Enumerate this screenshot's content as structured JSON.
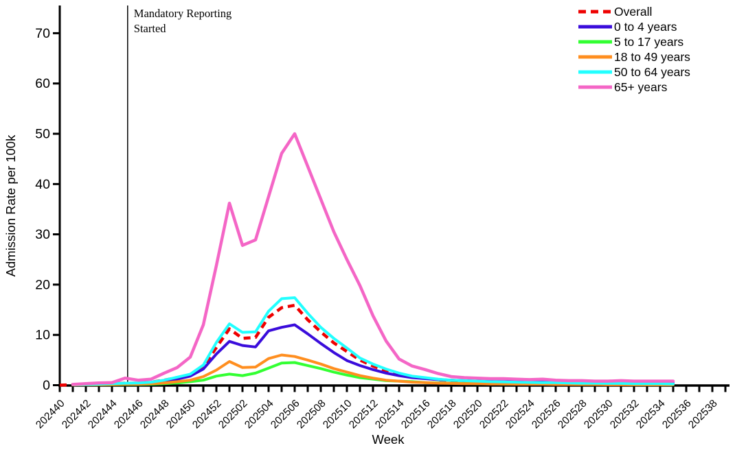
{
  "figure": {
    "background": "#FFFFFF",
    "axis_color": "#000000"
  },
  "chart_data": {
    "type": "line",
    "title": "",
    "xlabel": "Week",
    "ylabel": "Admission Rate per 100k",
    "ylim": [
      0,
      75
    ],
    "yticks": [
      0,
      10,
      20,
      30,
      40,
      50,
      60,
      70
    ],
    "grid": false,
    "legend_position": "top-right",
    "x_tick_step_weeks": 2,
    "axis_tick_count": 52,
    "x": [
      "202440",
      "202441",
      "202442",
      "202443",
      "202444",
      "202445",
      "202446",
      "202447",
      "202448",
      "202449",
      "202450",
      "202451",
      "202452",
      "202501",
      "202502",
      "202503",
      "202504",
      "202505",
      "202506",
      "202507",
      "202508",
      "202509",
      "202510",
      "202511",
      "202512",
      "202513",
      "202514",
      "202515",
      "202516",
      "202517",
      "202518",
      "202519",
      "202520",
      "202521",
      "202522",
      "202523",
      "202524",
      "202525",
      "202526",
      "202527",
      "202528",
      "202529",
      "202530",
      "202531",
      "202532",
      "202533",
      "202534",
      "202535"
    ],
    "x_tick_labels": [
      "202440",
      "202442",
      "202444",
      "202446",
      "202448",
      "202450",
      "202452",
      "202502",
      "202504",
      "202506",
      "202508",
      "202510",
      "202512",
      "202514",
      "202516",
      "202518",
      "202520",
      "202522",
      "202524",
      "202526",
      "202528",
      "202530",
      "202532",
      "202534",
      "202536",
      "202538"
    ],
    "vline": {
      "week": "202445",
      "label_line1": "Mandatory Reporting",
      "label_line2": "Started"
    },
    "series": [
      {
        "name": "Overall",
        "color": "#EE0000",
        "dashed": true,
        "values": [
          0,
          0.1,
          0.15,
          0.2,
          0.3,
          0.4,
          0.4,
          0.6,
          1.0,
          1.5,
          2.0,
          3.6,
          7.5,
          11.2,
          9.3,
          9.5,
          13.5,
          15.4,
          15.9,
          13.0,
          10.6,
          8.4,
          6.7,
          5.0,
          3.8,
          2.8,
          2.1,
          1.7,
          1.4,
          1.1,
          0.95,
          0.85,
          0.75,
          0.7,
          0.65,
          0.6,
          0.55,
          0.5,
          0.5,
          0.45,
          0.45,
          0.4,
          0.4,
          0.4,
          0.35,
          0.35,
          0.35,
          0.3
        ]
      },
      {
        "name": "0 to 4 years",
        "color": "#3A0CDB",
        "dashed": false,
        "values": [
          null,
          0.1,
          0.1,
          0.15,
          0.2,
          0.3,
          0.3,
          0.5,
          0.8,
          1.2,
          1.8,
          3.2,
          6.2,
          8.7,
          7.9,
          7.6,
          10.8,
          11.5,
          12.0,
          10.2,
          8.3,
          6.5,
          4.9,
          3.9,
          3.1,
          2.4,
          1.9,
          1.5,
          1.3,
          1.1,
          1.0,
          0.9,
          0.8,
          0.75,
          0.7,
          0.65,
          0.6,
          0.6,
          0.55,
          0.5,
          0.5,
          0.5,
          0.45,
          0.45,
          0.4,
          0.4,
          0.4,
          0.4
        ]
      },
      {
        "name": "5 to 17 years",
        "color": "#33FF33",
        "dashed": false,
        "values": [
          null,
          0.05,
          0.1,
          0.1,
          0.1,
          0.15,
          0.15,
          0.2,
          0.3,
          0.45,
          0.7,
          1.0,
          1.8,
          2.2,
          1.9,
          2.4,
          3.4,
          4.4,
          4.5,
          3.9,
          3.3,
          2.6,
          2.0,
          1.5,
          1.2,
          0.9,
          0.8,
          0.7,
          0.5,
          0.45,
          0.4,
          0.35,
          0.3,
          0.3,
          0.25,
          0.25,
          0.2,
          0.2,
          0.2,
          0.2,
          0.15,
          0.15,
          0.15,
          0.15,
          0.1,
          0.1,
          0.1,
          0.1
        ]
      },
      {
        "name": "18 to 49 years",
        "color": "#FF8E1F",
        "dashed": false,
        "values": [
          null,
          0.05,
          0.1,
          0.1,
          0.15,
          0.2,
          0.2,
          0.3,
          0.45,
          0.7,
          1.0,
          1.7,
          3.0,
          4.7,
          3.5,
          3.6,
          5.3,
          6.0,
          5.7,
          5.0,
          4.2,
          3.3,
          2.6,
          1.9,
          1.4,
          1.0,
          0.8,
          0.6,
          0.5,
          0.4,
          0.35,
          0.3,
          0.3,
          0.25,
          0.25,
          0.2,
          0.2,
          0.2,
          0.15,
          0.15,
          0.15,
          0.15,
          0.1,
          0.1,
          0.1,
          0.1,
          0.1,
          0.1
        ]
      },
      {
        "name": "50 to 64 years",
        "color": "#22FFFF",
        "dashed": false,
        "values": [
          null,
          0.1,
          0.15,
          0.2,
          0.3,
          0.4,
          0.45,
          0.6,
          1.0,
          1.6,
          2.2,
          4.0,
          8.5,
          12.2,
          10.5,
          10.6,
          14.7,
          17.2,
          17.4,
          14.3,
          11.5,
          9.3,
          7.4,
          5.4,
          4.2,
          3.2,
          2.4,
          1.8,
          1.5,
          1.2,
          1.0,
          0.9,
          0.8,
          0.7,
          0.65,
          0.6,
          0.55,
          0.5,
          0.5,
          0.45,
          0.4,
          0.4,
          0.35,
          0.35,
          0.3,
          0.3,
          0.3,
          0.25
        ]
      },
      {
        "name": "65+ years",
        "color": "#F466C6",
        "dashed": false,
        "values": [
          null,
          0.15,
          0.3,
          0.45,
          0.5,
          1.4,
          1.0,
          1.2,
          2.4,
          3.5,
          5.6,
          12.0,
          23.8,
          36.2,
          27.8,
          28.9,
          37.5,
          46.1,
          50.0,
          43.5,
          37.0,
          30.5,
          25.0,
          19.8,
          13.8,
          8.8,
          5.2,
          3.8,
          3.1,
          2.3,
          1.7,
          1.5,
          1.4,
          1.3,
          1.3,
          1.2,
          1.1,
          1.2,
          1.0,
          0.9,
          0.9,
          0.8,
          0.8,
          0.9,
          0.8,
          0.8,
          0.8,
          0.8
        ]
      }
    ]
  }
}
